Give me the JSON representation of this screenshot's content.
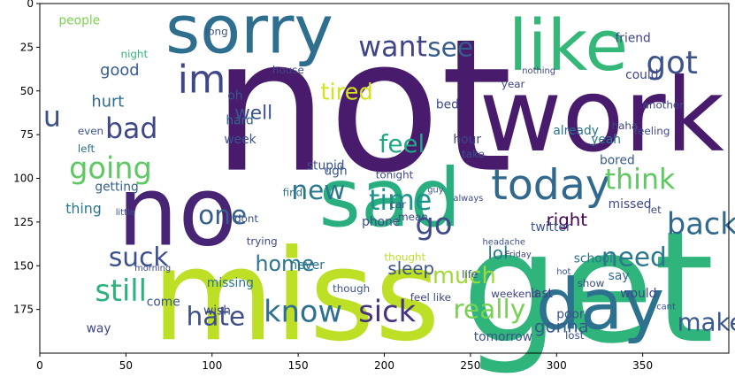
{
  "chart_data": {
    "type": "wordcloud",
    "title": "",
    "xlabel": "",
    "ylabel": "",
    "xlim": [
      0,
      400
    ],
    "ylim": [
      200,
      0
    ],
    "x_ticks": [
      0,
      50,
      100,
      150,
      200,
      250,
      300,
      350
    ],
    "y_ticks": [
      0,
      25,
      50,
      75,
      100,
      125,
      150,
      175
    ],
    "grid": false,
    "palette": [
      "#440154",
      "#482878",
      "#3e4989",
      "#31688e",
      "#26828e",
      "#1f9e89",
      "#35b779",
      "#6ece58",
      "#b5de2b",
      "#fde725"
    ],
    "words": [
      {
        "text": "not",
        "x": 100,
        "y": 95,
        "size": 105,
        "color": "#481b6d"
      },
      {
        "text": "get",
        "x": 245,
        "y": 193,
        "size": 88,
        "color": "#2fb47c"
      },
      {
        "text": "miss",
        "x": 65,
        "y": 192,
        "size": 72,
        "color": "#bddf26"
      },
      {
        "text": "work",
        "x": 255,
        "y": 84,
        "size": 58,
        "color": "#481b6d"
      },
      {
        "text": "no",
        "x": 45,
        "y": 138,
        "size": 55,
        "color": "#482475"
      },
      {
        "text": "sad",
        "x": 162,
        "y": 127,
        "size": 46,
        "color": "#29af7f"
      },
      {
        "text": "day",
        "x": 288,
        "y": 186,
        "size": 40,
        "color": "#2c728e"
      },
      {
        "text": "like",
        "x": 272,
        "y": 38,
        "size": 40,
        "color": "#35b779"
      },
      {
        "text": "sorry",
        "x": 73,
        "y": 28,
        "size": 38,
        "color": "#2e6e8e"
      },
      {
        "text": "today",
        "x": 262,
        "y": 112,
        "size": 24,
        "color": "#31688e"
      },
      {
        "text": "im",
        "x": 80,
        "y": 51,
        "size": 22,
        "color": "#3f4788"
      },
      {
        "text": "want",
        "x": 185,
        "y": 30,
        "size": 16,
        "color": "#404588"
      },
      {
        "text": "see",
        "x": 225,
        "y": 30,
        "size": 15,
        "color": "#365c8d"
      },
      {
        "text": "got",
        "x": 352,
        "y": 40,
        "size": 18,
        "color": "#3b528b"
      },
      {
        "text": "tired",
        "x": 163,
        "y": 55,
        "size": 13,
        "color": "#d2e21b"
      },
      {
        "text": "well",
        "x": 113,
        "y": 66,
        "size": 11,
        "color": "#3b528b"
      },
      {
        "text": "bad",
        "x": 38,
        "y": 77,
        "size": 16,
        "color": "#3f4788"
      },
      {
        "text": "u",
        "x": 2,
        "y": 70,
        "size": 16,
        "color": "#3b528b"
      },
      {
        "text": "feel",
        "x": 197,
        "y": 85,
        "size": 14,
        "color": "#22a785"
      },
      {
        "text": "going",
        "x": 17,
        "y": 100,
        "size": 17,
        "color": "#5ec962"
      },
      {
        "text": "think",
        "x": 328,
        "y": 106,
        "size": 16,
        "color": "#5ec962"
      },
      {
        "text": "time",
        "x": 191,
        "y": 118,
        "size": 16,
        "color": "#20928c"
      },
      {
        "text": "new",
        "x": 146,
        "y": 112,
        "size": 15,
        "color": "#2a778e"
      },
      {
        "text": "one",
        "x": 92,
        "y": 126,
        "size": 15,
        "color": "#355f8d"
      },
      {
        "text": "go",
        "x": 218,
        "y": 132,
        "size": 17,
        "color": "#3e4a89"
      },
      {
        "text": "much",
        "x": 228,
        "y": 160,
        "size": 13,
        "color": "#a0da39"
      },
      {
        "text": "need",
        "x": 326,
        "y": 150,
        "size": 15,
        "color": "#2a788e"
      },
      {
        "text": "back",
        "x": 364,
        "y": 132,
        "size": 17,
        "color": "#31688e"
      },
      {
        "text": "make",
        "x": 370,
        "y": 187,
        "size": 14,
        "color": "#38598c"
      },
      {
        "text": "still",
        "x": 32,
        "y": 170,
        "size": 17,
        "color": "#2db27d"
      },
      {
        "text": "suck",
        "x": 40,
        "y": 150,
        "size": 15,
        "color": "#3c508b"
      },
      {
        "text": "hate",
        "x": 85,
        "y": 184,
        "size": 15,
        "color": "#3d4e8a"
      },
      {
        "text": "home",
        "x": 125,
        "y": 153,
        "size": 12,
        "color": "#2a768e"
      },
      {
        "text": "know",
        "x": 130,
        "y": 182,
        "size": 17,
        "color": "#2d718e"
      },
      {
        "text": "sick",
        "x": 185,
        "y": 182,
        "size": 17,
        "color": "#46327e"
      },
      {
        "text": "really",
        "x": 240,
        "y": 180,
        "size": 15,
        "color": "#77d153"
      },
      {
        "text": "sleep",
        "x": 202,
        "y": 155,
        "size": 10,
        "color": "#3b528b"
      },
      {
        "text": "lol",
        "x": 260,
        "y": 146,
        "size": 10,
        "color": "#2a778e"
      },
      {
        "text": "right",
        "x": 294,
        "y": 127,
        "size": 10,
        "color": "#440154"
      },
      {
        "text": "gonna",
        "x": 287,
        "y": 188,
        "size": 10,
        "color": "#375a8c"
      },
      {
        "text": "good",
        "x": 35,
        "y": 41,
        "size": 9,
        "color": "#375b8d"
      },
      {
        "text": "hurt",
        "x": 30,
        "y": 59,
        "size": 9,
        "color": "#2f6b8e"
      },
      {
        "text": "people",
        "x": 11,
        "y": 12,
        "size": 7,
        "color": "#7cd250"
      },
      {
        "text": "friend",
        "x": 334,
        "y": 22,
        "size": 7,
        "color": "#404688"
      },
      {
        "text": "night",
        "x": 47,
        "y": 31,
        "size": 6,
        "color": "#35b779"
      },
      {
        "text": "oh",
        "x": 109,
        "y": 55,
        "size": 7,
        "color": "#39568c"
      },
      {
        "text": "hard",
        "x": 108,
        "y": 69,
        "size": 7,
        "color": "#31688e"
      },
      {
        "text": "week",
        "x": 107,
        "y": 80,
        "size": 7,
        "color": "#3a548c"
      },
      {
        "text": "even",
        "x": 22,
        "y": 75,
        "size": 6,
        "color": "#3b528b"
      },
      {
        "text": "left",
        "x": 22,
        "y": 85,
        "size": 6,
        "color": "#2c718e"
      },
      {
        "text": "getting",
        "x": 32,
        "y": 107,
        "size": 7,
        "color": "#355f8d"
      },
      {
        "text": "thing",
        "x": 15,
        "y": 120,
        "size": 8,
        "color": "#2a768e"
      },
      {
        "text": "ugh",
        "x": 165,
        "y": 98,
        "size": 7,
        "color": "#39558c"
      },
      {
        "text": "find",
        "x": 141,
        "y": 110,
        "size": 6,
        "color": "#2c728e"
      },
      {
        "text": "phone",
        "x": 187,
        "y": 127,
        "size": 7,
        "color": "#3e4a89"
      },
      {
        "text": "stupid",
        "x": 155,
        "y": 95,
        "size": 7,
        "color": "#3b528b"
      },
      {
        "text": "tonight",
        "x": 195,
        "y": 100,
        "size": 6,
        "color": "#3f4889"
      },
      {
        "text": "hour",
        "x": 240,
        "y": 80,
        "size": 7,
        "color": "#404588"
      },
      {
        "text": "take",
        "x": 245,
        "y": 88,
        "size": 6,
        "color": "#3b528b"
      },
      {
        "text": "bed",
        "x": 230,
        "y": 60,
        "size": 7,
        "color": "#3f4788"
      },
      {
        "text": "year",
        "x": 268,
        "y": 48,
        "size": 6,
        "color": "#3f4788"
      },
      {
        "text": "already",
        "x": 298,
        "y": 75,
        "size": 7,
        "color": "#2c728e"
      },
      {
        "text": "yeah",
        "x": 320,
        "y": 80,
        "size": 7,
        "color": "#2a778e"
      },
      {
        "text": "haha",
        "x": 332,
        "y": 72,
        "size": 6,
        "color": "#3f4788"
      },
      {
        "text": "could",
        "x": 340,
        "y": 43,
        "size": 7,
        "color": "#404588"
      },
      {
        "text": "feeling",
        "x": 345,
        "y": 75,
        "size": 6,
        "color": "#3e4a89"
      },
      {
        "text": "another",
        "x": 350,
        "y": 60,
        "size": 6,
        "color": "#3f4889"
      },
      {
        "text": "bored",
        "x": 325,
        "y": 92,
        "size": 7,
        "color": "#375a8c"
      },
      {
        "text": "missed",
        "x": 330,
        "y": 117,
        "size": 7,
        "color": "#3f4788"
      },
      {
        "text": "twitter",
        "x": 285,
        "y": 130,
        "size": 7,
        "color": "#3b528b"
      },
      {
        "text": "let",
        "x": 353,
        "y": 120,
        "size": 6,
        "color": "#3e4a89"
      },
      {
        "text": "school",
        "x": 310,
        "y": 148,
        "size": 7,
        "color": "#2c728e"
      },
      {
        "text": "say",
        "x": 330,
        "y": 158,
        "size": 7,
        "color": "#31688e"
      },
      {
        "text": "would",
        "x": 337,
        "y": 168,
        "size": 7,
        "color": "#3f4788"
      },
      {
        "text": "last",
        "x": 285,
        "y": 168,
        "size": 7,
        "color": "#3f4788"
      },
      {
        "text": "poor",
        "x": 300,
        "y": 180,
        "size": 7,
        "color": "#3b528b"
      },
      {
        "text": "lost",
        "x": 305,
        "y": 192,
        "size": 6,
        "color": "#3b528b"
      },
      {
        "text": "show",
        "x": 312,
        "y": 162,
        "size": 6,
        "color": "#3b528b"
      },
      {
        "text": "weekend",
        "x": 262,
        "y": 168,
        "size": 6,
        "color": "#404588"
      },
      {
        "text": "tomorrow",
        "x": 252,
        "y": 193,
        "size": 7,
        "color": "#3b528b"
      },
      {
        "text": "life",
        "x": 245,
        "y": 157,
        "size": 6,
        "color": "#3b528b"
      },
      {
        "text": "feel like",
        "x": 215,
        "y": 170,
        "size": 6,
        "color": "#3f4788"
      },
      {
        "text": "thought",
        "x": 200,
        "y": 147,
        "size": 6,
        "color": "#bddf26"
      },
      {
        "text": "though",
        "x": 170,
        "y": 165,
        "size": 6,
        "color": "#3b528b"
      },
      {
        "text": "never",
        "x": 145,
        "y": 152,
        "size": 7,
        "color": "#2c728e"
      },
      {
        "text": "trying",
        "x": 120,
        "y": 138,
        "size": 6,
        "color": "#3f4788"
      },
      {
        "text": "dont",
        "x": 113,
        "y": 125,
        "size": 6,
        "color": "#3b528b"
      },
      {
        "text": "car",
        "x": 203,
        "y": 117,
        "size": 6,
        "color": "#3b528b"
      },
      {
        "text": "mean",
        "x": 208,
        "y": 124,
        "size": 6,
        "color": "#3f4788"
      },
      {
        "text": "missing",
        "x": 97,
        "y": 162,
        "size": 7,
        "color": "#2c728e"
      },
      {
        "text": "wish",
        "x": 95,
        "y": 178,
        "size": 7,
        "color": "#3f4788"
      },
      {
        "text": "come",
        "x": 62,
        "y": 173,
        "size": 7,
        "color": "#3b528b"
      },
      {
        "text": "way",
        "x": 27,
        "y": 188,
        "size": 7,
        "color": "#3f4788"
      },
      {
        "text": "morning",
        "x": 55,
        "y": 153,
        "size": 5,
        "color": "#3f4788"
      },
      {
        "text": "little",
        "x": 44,
        "y": 121,
        "size": 5,
        "color": "#3b528b"
      },
      {
        "text": "house",
        "x": 135,
        "y": 40,
        "size": 6,
        "color": "#3f4788"
      },
      {
        "text": "long",
        "x": 96,
        "y": 18,
        "size": 6,
        "color": "#3b528b"
      },
      {
        "text": "headache",
        "x": 257,
        "y": 138,
        "size": 5,
        "color": "#3b528b"
      },
      {
        "text": "always",
        "x": 240,
        "y": 113,
        "size": 5,
        "color": "#3f4788"
      },
      {
        "text": "guy",
        "x": 225,
        "y": 108,
        "size": 5,
        "color": "#3b528b"
      },
      {
        "text": "nothing",
        "x": 280,
        "y": 40,
        "size": 5,
        "color": "#3f4788"
      },
      {
        "text": "hot",
        "x": 300,
        "y": 155,
        "size": 5,
        "color": "#3b528b"
      },
      {
        "text": "Friday",
        "x": 270,
        "y": 145,
        "size": 5,
        "color": "#3f4788"
      },
      {
        "text": "cant",
        "x": 358,
        "y": 175,
        "size": 5,
        "color": "#3b528b"
      }
    ]
  }
}
